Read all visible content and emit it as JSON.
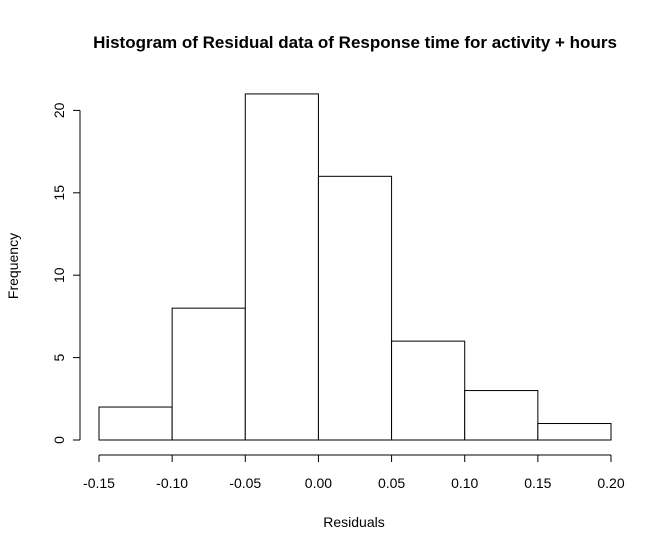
{
  "chart_data": {
    "type": "bar",
    "title": "Histogram of Residual data of Response time for activity + hours",
    "xlabel": "Residuals",
    "ylabel": "Frequency",
    "bins": [
      {
        "start": -0.15,
        "end": -0.1,
        "count": 2
      },
      {
        "start": -0.1,
        "end": -0.05,
        "count": 8
      },
      {
        "start": -0.05,
        "end": 0.0,
        "count": 21
      },
      {
        "start": 0.0,
        "end": 0.05,
        "count": 16
      },
      {
        "start": 0.05,
        "end": 0.1,
        "count": 6
      },
      {
        "start": 0.1,
        "end": 0.15,
        "count": 3
      },
      {
        "start": 0.15,
        "end": 0.2,
        "count": 1
      }
    ],
    "x_ticks": [
      "-0.15",
      "-0.10",
      "-0.05",
      "0.00",
      "0.05",
      "0.10",
      "0.15",
      "0.20"
    ],
    "y_ticks": [
      "0",
      "5",
      "10",
      "15",
      "20"
    ],
    "xlim": [
      -0.15,
      0.2
    ],
    "ylim": [
      0,
      21
    ],
    "grid": false
  }
}
